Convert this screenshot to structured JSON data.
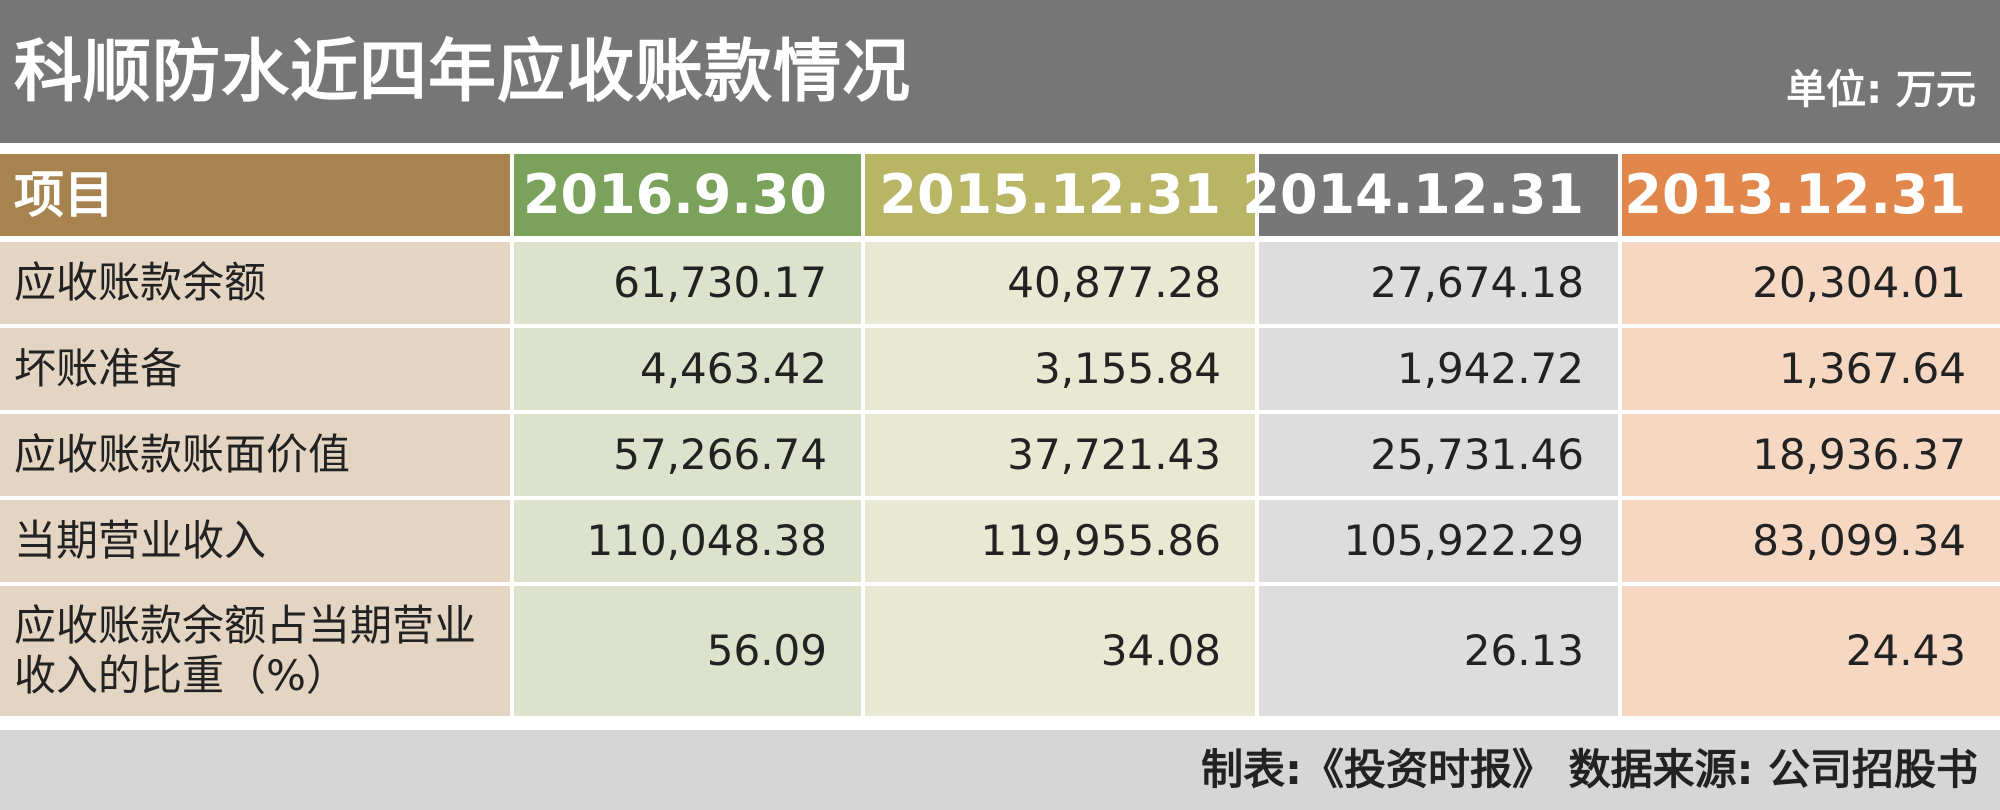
{
  "header": {
    "title": "科顺防水近四年应收账款情况",
    "unit": "单位: 万元"
  },
  "footer": {
    "source": "制表:《投资时报》 数据来源: 公司招股书"
  },
  "colors": {
    "title_bg": "#767676",
    "col_label_header": "#a7844f",
    "col_label_body": "#e3d5c2",
    "col_2016_header": "#7aa25a",
    "col_2016_body": "#dde2cc",
    "col_2015_header": "#b8b565",
    "col_2015_body": "#e9e8d2",
    "col_2014_header": "#777777",
    "col_2014_body": "#dddddd",
    "col_2013_header": "#e2874b",
    "col_2013_body": "#f6d8c2",
    "footer_bg": "#d6d6d6"
  },
  "chart_data": {
    "type": "table",
    "title": "科顺防水近四年应收账款情况",
    "unit": "单位: 万元",
    "columns": [
      "项目",
      "2016.9.30",
      "2015.12.31",
      "2014.12.31",
      "2013.12.31"
    ],
    "rows": [
      [
        "应收账款余额",
        "61,730.17",
        "40,877.28",
        "27,674.18",
        "20,304.01"
      ],
      [
        "坏账准备",
        "4,463.42",
        "3,155.84",
        "1,942.72",
        "1,367.64"
      ],
      [
        "应收账款账面价值",
        "57,266.74",
        "37,721.43",
        "25,731.46",
        "18,936.37"
      ],
      [
        "当期营业收入",
        "110,048.38",
        "119,955.86",
        "105,922.29",
        "83,099.34"
      ],
      [
        "应收账款余额占当期营业收入的比重（%）",
        "56.09",
        "34.08",
        "26.13",
        "24.43"
      ]
    ],
    "source": "制表:《投资时报》 数据来源: 公司招股书"
  }
}
